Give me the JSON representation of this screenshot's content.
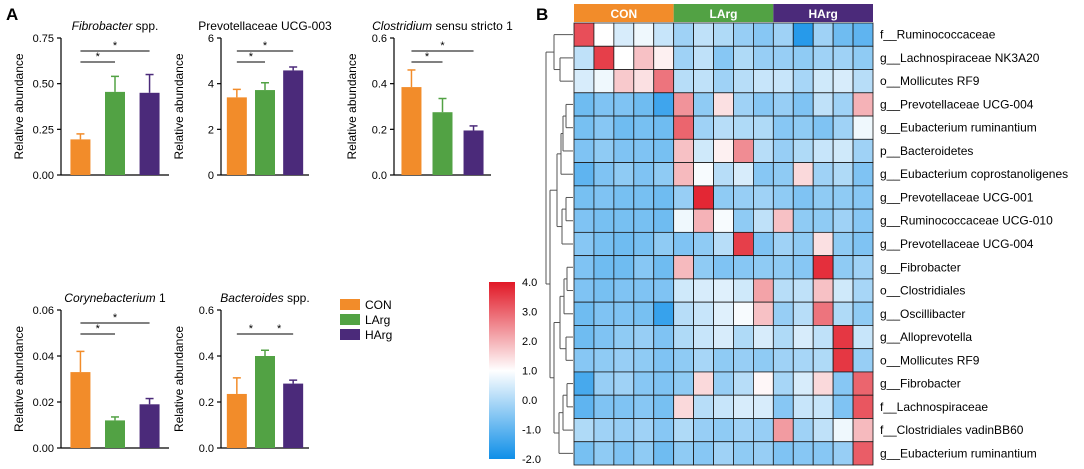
{
  "panel_labels": {
    "a": "A",
    "b": "B"
  },
  "colors": {
    "CON": "#f28c2a",
    "LArg": "#52a244",
    "HArg": "#4b2a7a"
  },
  "legend": [
    {
      "label": "CON",
      "color": "#f28c2a"
    },
    {
      "label": "LArg",
      "color": "#52a244"
    },
    {
      "label": "HArg",
      "color": "#4b2a7a"
    }
  ],
  "ylabel": "Relative abundance",
  "chart_data": [
    {
      "type": "bar",
      "title_parts": [
        {
          "text": "Fibrobacter",
          "italic": true
        },
        {
          "text": " spp.",
          "italic": false
        }
      ],
      "categories": [
        "CON",
        "LArg",
        "HArg"
      ],
      "values": [
        0.195,
        0.455,
        0.45
      ],
      "errors": [
        0.03,
        0.085,
        0.1
      ],
      "ylabel": "Relative abundance",
      "ylim": [
        0,
        0.75
      ],
      "yticks": [
        "0.00",
        "0.25",
        "0.50",
        "0.75"
      ],
      "significance": [
        {
          "from": 0,
          "to": 1,
          "label": "*"
        },
        {
          "from": 0,
          "to": 2,
          "label": "*"
        }
      ]
    },
    {
      "type": "bar",
      "title_parts": [
        {
          "text": "Prevotellaceae UCG-003",
          "italic": false
        }
      ],
      "categories": [
        "CON",
        "LArg",
        "HArg"
      ],
      "values": [
        3.4,
        3.72,
        4.58
      ],
      "errors": [
        0.35,
        0.32,
        0.15
      ],
      "ylabel": "Relative abundance",
      "ylim": [
        0,
        6
      ],
      "yticks": [
        "0",
        "2",
        "4",
        "6"
      ],
      "significance": [
        {
          "from": 0,
          "to": 1,
          "label": "*"
        },
        {
          "from": 0,
          "to": 2,
          "label": "*"
        }
      ]
    },
    {
      "type": "bar",
      "title_parts": [
        {
          "text": "Clostridium",
          "italic": true
        },
        {
          "text": " sensu stricto 1",
          "italic": false
        }
      ],
      "categories": [
        "CON",
        "LArg",
        "HArg"
      ],
      "values": [
        0.385,
        0.275,
        0.195
      ],
      "errors": [
        0.075,
        0.06,
        0.02
      ],
      "ylabel": "Relative abundance",
      "ylim": [
        0,
        0.6
      ],
      "yticks": [
        "0.0",
        "0.2",
        "0.4",
        "0.6"
      ],
      "significance": [
        {
          "from": 0,
          "to": 1,
          "label": "*"
        },
        {
          "from": 0,
          "to": 2,
          "label": "*"
        }
      ]
    },
    {
      "type": "bar",
      "title_parts": [
        {
          "text": "Corynebacterium",
          "italic": true
        },
        {
          "text": " 1",
          "italic": false
        }
      ],
      "categories": [
        "CON",
        "LArg",
        "HArg"
      ],
      "values": [
        0.033,
        0.012,
        0.019
      ],
      "errors": [
        0.009,
        0.0015,
        0.0025
      ],
      "ylabel": "Relative abundance",
      "ylim": [
        0,
        0.06
      ],
      "yticks": [
        "0.00",
        "0.02",
        "0.04",
        "0.06"
      ],
      "significance": [
        {
          "from": 0,
          "to": 1,
          "label": "*"
        },
        {
          "from": 0,
          "to": 2,
          "label": "*"
        }
      ]
    },
    {
      "type": "bar",
      "title_parts": [
        {
          "text": "Bacteroides",
          "italic": true
        },
        {
          "text": " spp.",
          "italic": false
        }
      ],
      "categories": [
        "CON",
        "LArg",
        "HArg"
      ],
      "values": [
        0.235,
        0.4,
        0.28
      ],
      "errors": [
        0.07,
        0.025,
        0.015
      ],
      "ylabel": "Relative abundance",
      "ylim": [
        0,
        0.6
      ],
      "yticks": [
        "0.0",
        "0.2",
        "0.4",
        "0.6"
      ],
      "significance": [
        {
          "from": 0,
          "to": 1,
          "label": "*"
        },
        {
          "from": 1,
          "to": 2,
          "label": "*"
        }
      ]
    },
    {
      "type": "heatmap",
      "groups": [
        {
          "label": "CON",
          "color": "#f28c2a",
          "columns": 5
        },
        {
          "label": "LArg",
          "color": "#52a244",
          "columns": 5
        },
        {
          "label": "HArg",
          "color": "#4b2a7a",
          "columns": 5
        }
      ],
      "rows": [
        "f__Ruminococcaceae",
        "g__Lachnospiraceae NK3A20",
        "o__Mollicutes RF9",
        "g__Prevotellaceae UCG-004",
        "g__Eubacterium ruminantium",
        "p__Bacteroidetes",
        "g__Eubacterium coprostanoligenes",
        "g__Prevotellaceae UCG-001",
        "g__Ruminococcaceae UCG-010",
        "g__Prevotellaceae UCG-004",
        "g__Fibrobacter",
        "o__Clostridiales",
        "g__Oscillibacter",
        "g__Alloprevotella",
        "o__Mollicutes RF9",
        "g__Fibrobacter",
        "f__Lachnospiraceae",
        "f__Clostridiales vadinBB60",
        "g__Eubacterium ruminantium"
      ],
      "values": [
        [
          3.3,
          1.0,
          0.5,
          0.8,
          0.3,
          -0.2,
          0.2,
          0.0,
          -0.3,
          -0.5,
          -0.2,
          -1.7,
          -0.2,
          -0.8,
          -1.0
        ],
        [
          0.2,
          3.5,
          1.0,
          1.8,
          1.2,
          -0.2,
          0.2,
          -0.5,
          0.0,
          -0.3,
          -0.3,
          -0.4,
          -0.2,
          -0.2,
          -0.4
        ],
        [
          0.5,
          0.8,
          1.7,
          1.4,
          2.8,
          0.1,
          0.2,
          -0.2,
          0.1,
          0.3,
          0.3,
          -0.1,
          0.4,
          0.5,
          0.1
        ],
        [
          -0.8,
          -0.6,
          -0.6,
          -0.8,
          -1.4,
          2.4,
          -0.4,
          1.4,
          -0.2,
          -0.5,
          -0.3,
          -0.6,
          0.2,
          -0.2,
          2.0
        ],
        [
          -0.7,
          -0.5,
          -0.8,
          -0.7,
          -0.8,
          3.0,
          -0.2,
          0.1,
          0.0,
          0.0,
          -0.5,
          -0.4,
          -0.6,
          -0.2,
          0.8
        ],
        [
          -0.6,
          -0.4,
          -0.6,
          -0.6,
          -0.7,
          1.8,
          0.4,
          1.2,
          2.5,
          0.1,
          -0.3,
          0.0,
          0.3,
          0.4,
          -0.2
        ],
        [
          -1.0,
          -0.6,
          -0.4,
          -0.6,
          -0.4,
          1.9,
          0.9,
          0.1,
          0.5,
          -0.5,
          -0.4,
          1.5,
          -0.2,
          0.0,
          -0.6
        ],
        [
          -0.7,
          -0.6,
          -0.7,
          -0.7,
          -0.8,
          -0.3,
          3.8,
          -0.4,
          -0.3,
          -0.2,
          -0.4,
          -0.6,
          -0.4,
          -0.4,
          -0.5
        ],
        [
          -0.6,
          -0.7,
          -0.7,
          -0.7,
          -0.8,
          0.8,
          2.0,
          0.9,
          -0.4,
          0.2,
          1.8,
          -0.4,
          -0.4,
          -0.2,
          -0.5
        ],
        [
          -0.5,
          -0.7,
          -0.8,
          -0.7,
          -0.4,
          -0.6,
          -0.4,
          0.1,
          3.5,
          -0.6,
          -0.2,
          -0.4,
          1.4,
          -0.4,
          -0.6
        ],
        [
          -0.6,
          -0.8,
          -0.8,
          -0.5,
          -0.8,
          1.9,
          -0.4,
          -0.6,
          -0.5,
          -0.4,
          -0.4,
          -0.5,
          3.7,
          -0.4,
          -0.2
        ],
        [
          -0.6,
          -0.7,
          -0.6,
          -0.6,
          -0.6,
          0.4,
          0.5,
          0.6,
          0.4,
          2.2,
          0.1,
          0.2,
          1.8,
          0.4,
          -0.1
        ],
        [
          -0.8,
          -0.6,
          -0.6,
          -0.7,
          -1.5,
          0.1,
          0.3,
          0.6,
          0.9,
          1.8,
          -0.3,
          0.1,
          2.8,
          0.0,
          -0.4
        ],
        [
          -0.8,
          -0.6,
          -0.4,
          -0.3,
          -0.6,
          0.0,
          0.3,
          0.5,
          0.0,
          0.5,
          0.0,
          0.5,
          0.2,
          3.6,
          0.3
        ],
        [
          -0.5,
          -0.4,
          -0.3,
          -0.4,
          -0.6,
          -0.4,
          -0.1,
          -0.4,
          -0.3,
          -0.4,
          -0.2,
          -0.1,
          0.0,
          3.6,
          -0.3
        ],
        [
          -1.3,
          -0.3,
          -0.2,
          -0.5,
          -0.6,
          -0.4,
          1.5,
          -0.3,
          0.1,
          1.1,
          -0.1,
          0.5,
          1.5,
          -0.5,
          3.0
        ],
        [
          -1.0,
          -0.6,
          -0.6,
          -0.5,
          -0.7,
          1.5,
          0.1,
          0.3,
          0.5,
          0.5,
          -0.5,
          0.3,
          0.3,
          -0.6,
          3.2
        ],
        [
          0.0,
          -0.2,
          -0.3,
          -0.2,
          -0.5,
          0.0,
          -0.3,
          -0.4,
          -0.2,
          -0.3,
          2.3,
          -0.2,
          0.2,
          0.8,
          1.9
        ],
        [
          -0.7,
          -0.4,
          -0.6,
          -0.4,
          -0.8,
          -0.4,
          -0.5,
          -0.2,
          -0.4,
          -0.3,
          -0.6,
          -0.5,
          -0.5,
          -0.3,
          3.1
        ]
      ],
      "colorbar": {
        "range": [
          -2.0,
          4.0
        ],
        "ticks": [
          "4.0",
          "3.0",
          "2.0",
          "1.0",
          "0.0",
          "-1.0",
          "-2.0"
        ],
        "colors": {
          "low": "#0f8fe8",
          "mid": "#ffffff",
          "high": "#e11826"
        }
      }
    }
  ]
}
